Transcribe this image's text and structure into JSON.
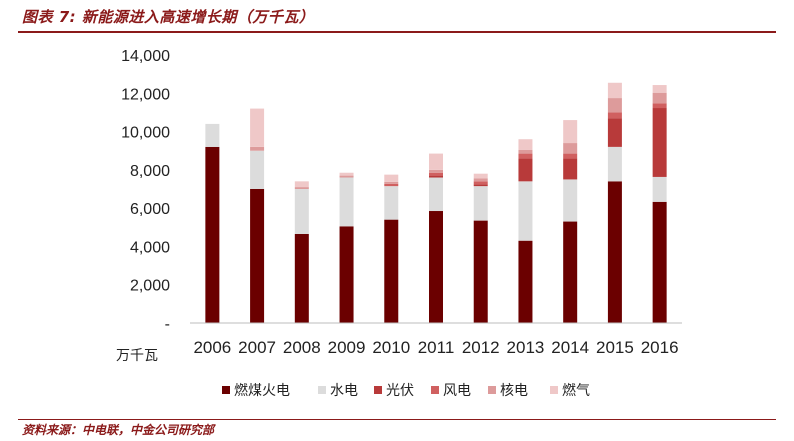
{
  "header": {
    "title": "图表 7: 新能源进入高速增长期（万千瓦）"
  },
  "footer": {
    "source": "资料来源：中电联，中金公司研究部"
  },
  "chart_data": {
    "type": "bar",
    "stacked": true,
    "unit_label": "万千瓦",
    "categories": [
      "2006",
      "2007",
      "2008",
      "2009",
      "2010",
      "2011",
      "2012",
      "2013",
      "2014",
      "2015",
      "2016"
    ],
    "ylim": [
      0,
      14000
    ],
    "yticks": [
      {
        "value": 0,
        "label": "-"
      },
      {
        "value": 2000,
        "label": "2,000"
      },
      {
        "value": 4000,
        "label": "4,000"
      },
      {
        "value": 6000,
        "label": "6,000"
      },
      {
        "value": 8000,
        "label": "8,000"
      },
      {
        "value": 10000,
        "label": "10,000"
      },
      {
        "value": 12000,
        "label": "12,000"
      },
      {
        "value": 14000,
        "label": "14,000"
      }
    ],
    "grid": false,
    "legend_position": "bottom",
    "series": [
      {
        "name": "燃煤火电",
        "color": "#6b0000",
        "values": [
          9200,
          7000,
          4650,
          5050,
          5400,
          5850,
          5350,
          4300,
          5300,
          7400,
          6330
        ]
      },
      {
        "name": "水电",
        "color": "#dcdcdc",
        "values": [
          1200,
          2000,
          2350,
          2550,
          1750,
          1750,
          1800,
          3100,
          2200,
          1800,
          1300
        ]
      },
      {
        "name": "光伏",
        "color": "#b83a3a",
        "values": [
          0,
          0,
          0,
          0,
          0,
          100,
          100,
          1200,
          1100,
          1500,
          3600
        ]
      },
      {
        "name": "风电",
        "color": "#d06060",
        "values": [
          0,
          0,
          0,
          0,
          120,
          150,
          150,
          250,
          250,
          300,
          250
        ]
      },
      {
        "name": "核电",
        "color": "#dd9b9b",
        "values": [
          0,
          200,
          100,
          100,
          100,
          150,
          150,
          200,
          550,
          750,
          550
        ]
      },
      {
        "name": "燃气",
        "color": "#efc8c8",
        "values": [
          0,
          2000,
          300,
          150,
          380,
          850,
          250,
          550,
          1200,
          800,
          400
        ]
      }
    ]
  }
}
